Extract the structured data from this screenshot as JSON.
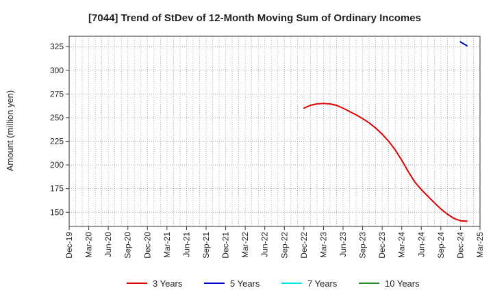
{
  "chart_data": {
    "type": "line",
    "title": "[7044]  Trend of StDev of 12-Month Moving Sum of Ordinary Incomes",
    "xlabel": "",
    "ylabel": "Amount (million yen)",
    "x_ticks": [
      "Dec-19",
      "Mar-20",
      "Jun-20",
      "Sep-20",
      "Dec-20",
      "Mar-21",
      "Jun-21",
      "Sep-21",
      "Dec-21",
      "Mar-22",
      "Jun-22",
      "Sep-22",
      "Dec-22",
      "Mar-23",
      "Jun-23",
      "Sep-23",
      "Dec-23",
      "Mar-24",
      "Jun-24",
      "Sep-24",
      "Dec-24",
      "Mar-25"
    ],
    "y_ticks": [
      150,
      175,
      200,
      225,
      250,
      275,
      300,
      325
    ],
    "ylim": [
      135,
      336
    ],
    "xlim": [
      "Dec-19",
      "Mar-25"
    ],
    "grid": true,
    "legend_position": "bottom",
    "series": [
      {
        "name": "3 Years",
        "color": "#dd0000",
        "points": [
          {
            "x": "Dec-22",
            "y": 260
          },
          {
            "x": "Jan-23",
            "y": 263
          },
          {
            "x": "Feb-23",
            "y": 264.5
          },
          {
            "x": "Mar-23",
            "y": 265
          },
          {
            "x": "Apr-23",
            "y": 264.5
          },
          {
            "x": "May-23",
            "y": 263
          },
          {
            "x": "Jun-23",
            "y": 260
          },
          {
            "x": "Jul-23",
            "y": 256.5
          },
          {
            "x": "Aug-23",
            "y": 253
          },
          {
            "x": "Sep-23",
            "y": 249
          },
          {
            "x": "Oct-23",
            "y": 244.5
          },
          {
            "x": "Nov-23",
            "y": 239
          },
          {
            "x": "Dec-23",
            "y": 232.5
          },
          {
            "x": "Jan-24",
            "y": 225
          },
          {
            "x": "Feb-24",
            "y": 216
          },
          {
            "x": "Mar-24",
            "y": 205
          },
          {
            "x": "Apr-24",
            "y": 193
          },
          {
            "x": "May-24",
            "y": 182
          },
          {
            "x": "Jun-24",
            "y": 174
          },
          {
            "x": "Jul-24",
            "y": 167
          },
          {
            "x": "Aug-24",
            "y": 160
          },
          {
            "x": "Sep-24",
            "y": 153.5
          },
          {
            "x": "Oct-24",
            "y": 148
          },
          {
            "x": "Nov-24",
            "y": 143.5
          },
          {
            "x": "Dec-24",
            "y": 141
          },
          {
            "x": "Jan-25",
            "y": 140.5
          }
        ]
      },
      {
        "name": "5 Years",
        "color": "#0000cc",
        "points": [
          {
            "x": "Dec-24",
            "y": 330
          },
          {
            "x": "Jan-25",
            "y": 326
          }
        ]
      },
      {
        "name": "7 Years",
        "color": "#00e5ee",
        "points": []
      },
      {
        "name": "10 Years",
        "color": "#228b22",
        "points": []
      }
    ]
  }
}
